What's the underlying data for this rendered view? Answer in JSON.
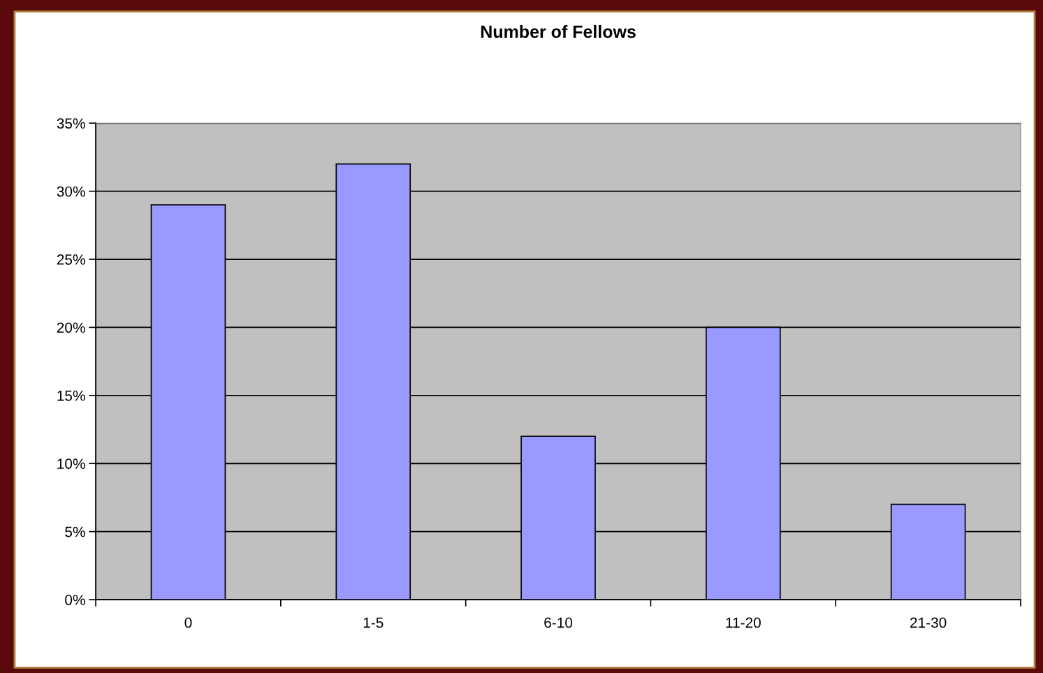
{
  "chart_data": {
    "type": "bar",
    "title": "Number of Fellows",
    "categories": [
      "0",
      "1-5",
      "6-10",
      "11-20",
      "21-30"
    ],
    "values": [
      29,
      32,
      12,
      20,
      7
    ],
    "color": "#9999ff",
    "ylim": [
      0,
      35
    ],
    "yticks": [
      {
        "value": 0,
        "label": "0%"
      },
      {
        "value": 5,
        "label": "5%"
      },
      {
        "value": 10,
        "label": "10%"
      },
      {
        "value": 15,
        "label": "15%"
      },
      {
        "value": 20,
        "label": "20%"
      },
      {
        "value": 25,
        "label": "25%"
      },
      {
        "value": 30,
        "label": "30%"
      },
      {
        "value": 35,
        "label": "35%"
      }
    ],
    "grid": "y",
    "legend": false
  }
}
